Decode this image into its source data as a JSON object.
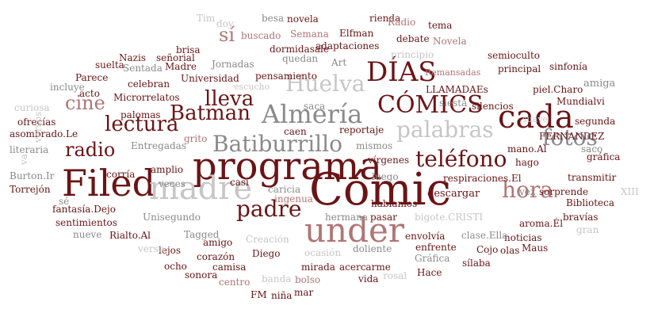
{
  "palette": {
    "maroon": "#6a1416",
    "dark_gray": "#4a4a4a",
    "gray": "#8a8a8a",
    "light_gray": "#c6c6c6",
    "pale_maroon": "#b07575"
  },
  "words": [
    {
      "text": "Cómic",
      "color": "maroon"
    },
    {
      "text": "programa",
      "color": "maroon"
    },
    {
      "text": "Filed",
      "color": "maroon"
    },
    {
      "text": "under",
      "color": "pale_maroon"
    },
    {
      "text": "madre",
      "color": "light_gray"
    },
    {
      "text": "cada",
      "color": "maroon"
    },
    {
      "text": "CÓMICS",
      "color": "maroon"
    },
    {
      "text": "DÍAS",
      "color": "maroon"
    },
    {
      "text": "Almería",
      "color": "gray"
    },
    {
      "text": "Batiburrillo",
      "color": "gray"
    },
    {
      "text": "palabras",
      "color": "light_gray"
    },
    {
      "text": "teléfono",
      "color": "maroon"
    },
    {
      "text": "Batman",
      "color": "maroon"
    },
    {
      "text": "lleva",
      "color": "maroon"
    },
    {
      "text": "lectura",
      "color": "maroon"
    },
    {
      "text": "padre",
      "color": "maroon"
    },
    {
      "text": "Huelva",
      "color": "light_gray"
    },
    {
      "text": "fotos",
      "color": "gray"
    },
    {
      "text": "hora",
      "color": "pale_maroon"
    },
    {
      "text": "radio",
      "color": "maroon"
    },
    {
      "text": "cine",
      "color": "pale_maroon"
    },
    {
      "text": "FERNANDEZ",
      "color": "maroon"
    },
    {
      "text": "LLAMADAEs",
      "color": "maroon"
    },
    {
      "text": "Remansadas",
      "color": "pale_maroon"
    },
    {
      "text": "principal",
      "color": "maroon"
    },
    {
      "text": "semioculto",
      "color": "maroon"
    },
    {
      "text": "sinfonía",
      "color": "maroon"
    },
    {
      "text": "amiga",
      "color": "gray"
    },
    {
      "text": "piel.Charo",
      "color": "maroon"
    },
    {
      "text": "Mundialvi",
      "color": "maroon"
    },
    {
      "text": "silencios",
      "color": "maroon"
    },
    {
      "text": "siesta",
      "color": "gray"
    },
    {
      "text": "segunda",
      "color": "maroon"
    },
    {
      "text": "saco",
      "color": "gray"
    },
    {
      "text": "gráfica",
      "color": "maroon"
    },
    {
      "text": "mano.Al",
      "color": "maroon"
    },
    {
      "text": "hago",
      "color": "maroon"
    },
    {
      "text": "transmitir",
      "color": "maroon"
    },
    {
      "text": "suave",
      "color": "light_gray"
    },
    {
      "text": "respiraciones.El",
      "color": "maroon"
    },
    {
      "text": "vez",
      "color": "gray"
    },
    {
      "text": "sorprende",
      "color": "maroon"
    },
    {
      "text": "XIII",
      "color": "light_gray"
    },
    {
      "text": "Biblioteca",
      "color": "maroon"
    },
    {
      "text": "bravías",
      "color": "maroon"
    },
    {
      "text": "gran",
      "color": "light_gray"
    },
    {
      "text": "aroma.Él",
      "color": "maroon"
    },
    {
      "text": "noticias",
      "color": "maroon"
    },
    {
      "text": "Maus",
      "color": "maroon"
    },
    {
      "text": "clase.Ella",
      "color": "gray"
    },
    {
      "text": "bigote.CRISTI",
      "color": "light_gray"
    },
    {
      "text": "envolvía",
      "color": "maroon"
    },
    {
      "text": "enfrente",
      "color": "maroon"
    },
    {
      "text": "Cojo",
      "color": "maroon"
    },
    {
      "text": "olas",
      "color": "maroon"
    },
    {
      "text": "Gráfica",
      "color": "gray"
    },
    {
      "text": "sílaba",
      "color": "maroon"
    },
    {
      "text": "Hace",
      "color": "maroon"
    },
    {
      "text": "descargar",
      "color": "maroon"
    },
    {
      "text": "pasar",
      "color": "maroon"
    },
    {
      "text": "hablamos",
      "color": "maroon"
    },
    {
      "text": "hermana",
      "color": "gray"
    },
    {
      "text": "doliente",
      "color": "gray"
    },
    {
      "text": "ocasión",
      "color": "light_gray"
    },
    {
      "text": "acercarme",
      "color": "maroon"
    },
    {
      "text": "rosal",
      "color": "light_gray"
    },
    {
      "text": "vida",
      "color": "maroon"
    },
    {
      "text": "mirada",
      "color": "maroon"
    },
    {
      "text": "bolso",
      "color": "pale_maroon"
    },
    {
      "text": "mar",
      "color": "maroon"
    },
    {
      "text": "niña",
      "color": "maroon"
    },
    {
      "text": "FM",
      "color": "maroon"
    },
    {
      "text": "banda",
      "color": "light_gray"
    },
    {
      "text": "centro",
      "color": "pale_maroon"
    },
    {
      "text": "sonora",
      "color": "maroon"
    },
    {
      "text": "camisa",
      "color": "maroon"
    },
    {
      "text": "ocho",
      "color": "maroon"
    },
    {
      "text": "corazón",
      "color": "maroon"
    },
    {
      "text": "Diego",
      "color": "maroon"
    },
    {
      "text": "Creación",
      "color": "light_gray"
    },
    {
      "text": "amigo",
      "color": "maroon"
    },
    {
      "text": "lejos",
      "color": "maroon"
    },
    {
      "text": "Tagged",
      "color": "gray"
    },
    {
      "text": "Rialto.Al",
      "color": "maroon"
    },
    {
      "text": "nueve",
      "color": "gray"
    },
    {
      "text": "verso",
      "color": "light_gray"
    },
    {
      "text": "sentimientos",
      "color": "maroon"
    },
    {
      "text": "fantasía.Dejo",
      "color": "maroon"
    },
    {
      "text": "Unisegundo",
      "color": "gray"
    },
    {
      "text": "Torrejón",
      "color": "maroon"
    },
    {
      "text": "Burton.Ir",
      "color": "gray"
    },
    {
      "text": "literaria",
      "color": "gray"
    },
    {
      "text": "asombrado.Le",
      "color": "maroon"
    },
    {
      "text": "ofrecías",
      "color": "maroon"
    },
    {
      "text": "curiosa",
      "color": "light_gray"
    },
    {
      "text": "incluye",
      "color": "gray"
    },
    {
      "text": "Parece",
      "color": "maroon"
    },
    {
      "text": "suelta",
      "color": "maroon"
    },
    {
      "text": "Sentada",
      "color": "gray"
    },
    {
      "text": "palomas",
      "color": "maroon"
    },
    {
      "text": "celebran",
      "color": "maroon"
    },
    {
      "text": "Microrrelatos",
      "color": "maroon"
    },
    {
      "text": "Entregadas",
      "color": "gray"
    },
    {
      "text": "corría",
      "color": "maroon"
    },
    {
      "text": "amplio",
      "color": "maroon"
    },
    {
      "text": "veces",
      "color": "gray"
    },
    {
      "text": "casi",
      "color": "maroon"
    },
    {
      "text": "grito",
      "color": "pale_maroon"
    },
    {
      "text": "caricia",
      "color": "gray"
    },
    {
      "text": "ingenua",
      "color": "pale_maroon"
    },
    {
      "text": "luego",
      "color": "gray"
    },
    {
      "text": "vírgenes",
      "color": "maroon"
    },
    {
      "text": "mismos",
      "color": "gray"
    },
    {
      "text": "reportaje",
      "color": "maroon"
    },
    {
      "text": "caen",
      "color": "maroon"
    },
    {
      "text": "saca",
      "color": "gray"
    },
    {
      "text": "escucho",
      "color": "light_gray"
    },
    {
      "text": "pensamiento",
      "color": "maroon"
    },
    {
      "text": "Universidad",
      "color": "maroon"
    },
    {
      "text": "Jornadas",
      "color": "gray"
    },
    {
      "text": "señorial",
      "color": "maroon"
    },
    {
      "text": "Nazis",
      "color": "maroon"
    },
    {
      "text": "acto",
      "color": "maroon"
    },
    {
      "text": "Madre",
      "color": "maroon"
    },
    {
      "text": "brisa",
      "color": "maroon"
    },
    {
      "text": "Tim",
      "color": "light_gray"
    },
    {
      "text": "doy",
      "color": "light_gray"
    },
    {
      "text": "sí",
      "color": "pale_maroon"
    },
    {
      "text": "besa",
      "color": "gray"
    },
    {
      "text": "novela",
      "color": "maroon"
    },
    {
      "text": "buscado",
      "color": "pale_maroon"
    },
    {
      "text": "Semana",
      "color": "pale_maroon"
    },
    {
      "text": "dormidasale",
      "color": "maroon"
    },
    {
      "text": "adaptaciones",
      "color": "maroon"
    },
    {
      "text": "quedan",
      "color": "gray"
    },
    {
      "text": "Art",
      "color": "gray"
    },
    {
      "text": "rienda",
      "color": "maroon"
    },
    {
      "text": "Radio",
      "color": "pale_maroon"
    },
    {
      "text": "tema",
      "color": "maroon"
    },
    {
      "text": "Elfman",
      "color": "maroon"
    },
    {
      "text": "debate",
      "color": "maroon"
    },
    {
      "text": "Novela",
      "color": "pale_maroon"
    },
    {
      "text": "principio",
      "color": "light_gray"
    },
    {
      "text": "versos",
      "color": "light_gray"
    },
    {
      "text": "va",
      "color": "light_gray"
    },
    {
      "text": "sé",
      "color": "gray"
    }
  ]
}
